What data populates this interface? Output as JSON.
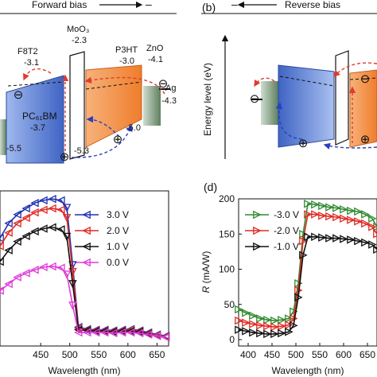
{
  "panel_a": {
    "bias_label": "Forward bias",
    "minus": "–",
    "labels": {
      "moo3": "MoO₃",
      "moo3_level": "-2.3",
      "f8t2": "F8T2",
      "f8t2_level": "-3.1",
      "p3ht": "P3HT",
      "p3ht_level": "-3.0",
      "zno": "ZnO",
      "zno_level": "-4.1",
      "ag": "Ag",
      "ag_level": "-4.3",
      "pcbm": "PC₆₁BM",
      "pcbm_level": "-3.7",
      "pcbm_homo": "-5.5",
      "moo3_homo": "-5.3",
      "p3ht_homo": "-5.0",
      "minus_symbol": "⊖",
      "plus_symbol": "⊕"
    },
    "colors": {
      "pcbm": "#4a6fc9",
      "p3ht": "#f08a3e",
      "ag": "#5f7f5f",
      "electron_path": "#e03a2f",
      "hole_path": "#2a3fc0"
    }
  },
  "panel_b": {
    "tag": "(b)",
    "bias_label": "Reverse bias",
    "ylabel": "Energy level (eV)"
  },
  "chart_c": {
    "type": "line",
    "xlabel": "Wavelength (nm)",
    "xlim": [
      380,
      670
    ],
    "xticks": [
      450,
      500,
      550,
      600,
      650
    ],
    "xtick_labels": [
      "450",
      "500",
      "550",
      "600",
      "650"
    ],
    "legend": [
      "3.0 V",
      "2.0 V",
      "1.0 V",
      "0.0 V"
    ],
    "colors": [
      "#1f2fb0",
      "#e02a24",
      "#111111",
      "#e03bd8"
    ],
    "x": [
      380,
      395,
      410,
      425,
      440,
      455,
      470,
      485,
      495,
      505,
      515,
      530,
      545,
      560,
      575,
      590,
      605,
      620,
      635,
      650,
      665
    ],
    "series": [
      {
        "name": "3.0 V",
        "values": [
          240,
          262,
          275,
          284,
          292,
          296,
          298,
          296,
          285,
          200,
          108,
          105,
          104,
          104,
          103,
          104,
          105,
          103,
          100,
          97,
          95
        ]
      },
      {
        "name": "2.0 V",
        "values": [
          228,
          248,
          262,
          270,
          278,
          282,
          284,
          282,
          270,
          190,
          106,
          104,
          103,
          103,
          102,
          103,
          104,
          102,
          99,
          96,
          94
        ]
      },
      {
        "name": "1.0 V",
        "values": [
          205,
          222,
          235,
          243,
          250,
          254,
          256,
          253,
          242,
          172,
          104,
          103,
          102,
          102,
          101,
          102,
          102,
          101,
          98,
          95,
          93
        ]
      },
      {
        "name": "0.0 V",
        "values": [
          162,
          172,
          182,
          188,
          193,
          197,
          198,
          196,
          186,
          140,
          100,
          100,
          100,
          100,
          99,
          100,
          100,
          99,
          97,
          95,
          93
        ]
      }
    ]
  },
  "chart_d": {
    "tag": "(d)",
    "type": "line",
    "xlabel": "Wavelength (nm)",
    "ylabel": "R (mA/W)",
    "ylabel_italic": "R",
    "ylabel_rest": " (mA/W)",
    "xlim": [
      380,
      670
    ],
    "ylim": [
      0,
      200
    ],
    "xticks": [
      400,
      450,
      500,
      550,
      600,
      650
    ],
    "xtick_labels": [
      "400",
      "450",
      "500",
      "550",
      "600",
      "650"
    ],
    "yticks": [
      0,
      50,
      100,
      150,
      200
    ],
    "ytick_labels": [
      "0",
      "50",
      "100",
      "150",
      "200"
    ],
    "legend": [
      "-3.0 V",
      "-2.0 V",
      "-1.0 V"
    ],
    "colors": [
      "#2f8a2f",
      "#e02a24",
      "#111111"
    ],
    "x": [
      380,
      395,
      410,
      425,
      440,
      455,
      470,
      485,
      495,
      505,
      515,
      525,
      540,
      555,
      570,
      585,
      600,
      615,
      630,
      645,
      660,
      670
    ],
    "series": [
      {
        "name": "-3.0 V",
        "values": [
          43,
          38,
          34,
          30,
          28,
          27,
          28,
          30,
          40,
          80,
          150,
          193,
          192,
          190,
          188,
          187,
          185,
          183,
          182,
          178,
          172,
          160
        ]
      },
      {
        "name": "-2.0 V",
        "values": [
          27,
          24,
          22,
          20,
          19,
          18,
          19,
          21,
          30,
          70,
          140,
          178,
          178,
          176,
          175,
          174,
          172,
          170,
          168,
          165,
          160,
          150
        ]
      },
      {
        "name": "-1.0 V",
        "values": [
          14,
          12,
          10,
          9,
          8,
          8,
          9,
          11,
          20,
          60,
          120,
          146,
          146,
          145,
          144,
          144,
          143,
          142,
          140,
          138,
          135,
          128
        ]
      }
    ]
  }
}
